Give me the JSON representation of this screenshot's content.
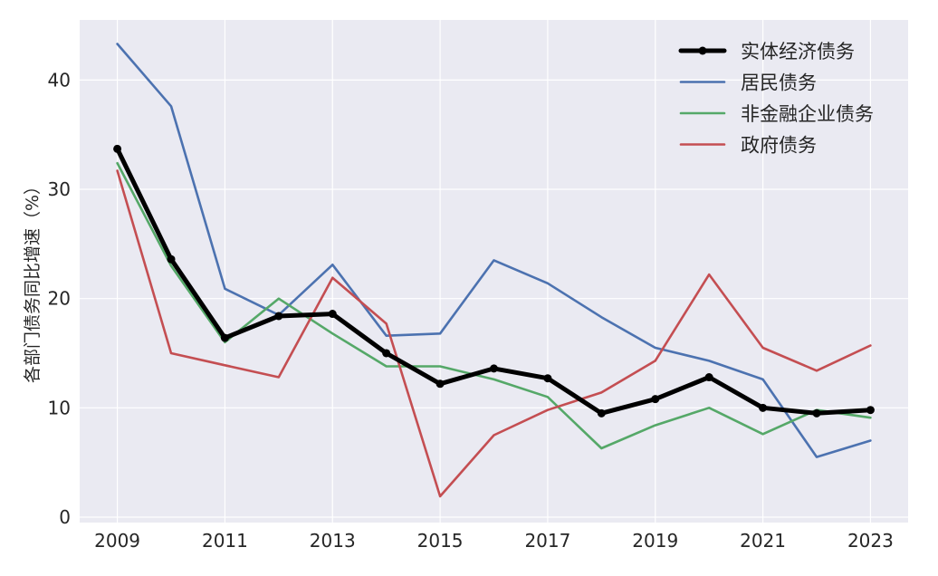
{
  "chart_data": {
    "type": "line",
    "title": "",
    "xlabel": "",
    "ylabel": "各部门债务同比增速（%）",
    "xlim": [
      2008.3,
      2023.7
    ],
    "ylim": [
      -0.5,
      45.5
    ],
    "x": [
      2009,
      2010,
      2011,
      2012,
      2013,
      2014,
      2015,
      2016,
      2017,
      2018,
      2019,
      2020,
      2021,
      2022,
      2023
    ],
    "xticks": [
      "2009",
      "2011",
      "2013",
      "2015",
      "2017",
      "2019",
      "2021",
      "2023"
    ],
    "yticks": [
      "0",
      "10",
      "20",
      "30",
      "40"
    ],
    "grid": true,
    "legend_position": "top-right",
    "background_color": "#eaeaf2",
    "series": [
      {
        "name": "实体经济债务",
        "color": "#000000",
        "bold": true,
        "markers": true,
        "values": [
          33.7,
          23.6,
          16.4,
          18.4,
          18.6,
          15.0,
          12.2,
          13.6,
          12.7,
          9.5,
          10.8,
          12.8,
          10.0,
          9.5,
          9.8
        ]
      },
      {
        "name": "居民债务",
        "color": "#4c72b0",
        "bold": false,
        "markers": false,
        "values": [
          43.3,
          37.6,
          20.9,
          18.5,
          23.1,
          16.6,
          16.8,
          23.5,
          21.4,
          18.3,
          15.5,
          14.3,
          12.6,
          5.5,
          7.0
        ]
      },
      {
        "name": "非金融企业债务",
        "color": "#55a868",
        "bold": false,
        "markers": false,
        "values": [
          32.4,
          23.0,
          16.0,
          20.0,
          16.8,
          13.8,
          13.8,
          12.6,
          11.0,
          6.3,
          8.4,
          10.0,
          7.6,
          9.8,
          9.1
        ]
      },
      {
        "name": "政府债务",
        "color": "#c44e52",
        "bold": false,
        "markers": false,
        "values": [
          31.7,
          15.0,
          13.9,
          12.8,
          21.9,
          17.7,
          1.9,
          7.5,
          9.8,
          11.4,
          14.3,
          22.2,
          15.5,
          13.4,
          15.7
        ]
      }
    ]
  }
}
